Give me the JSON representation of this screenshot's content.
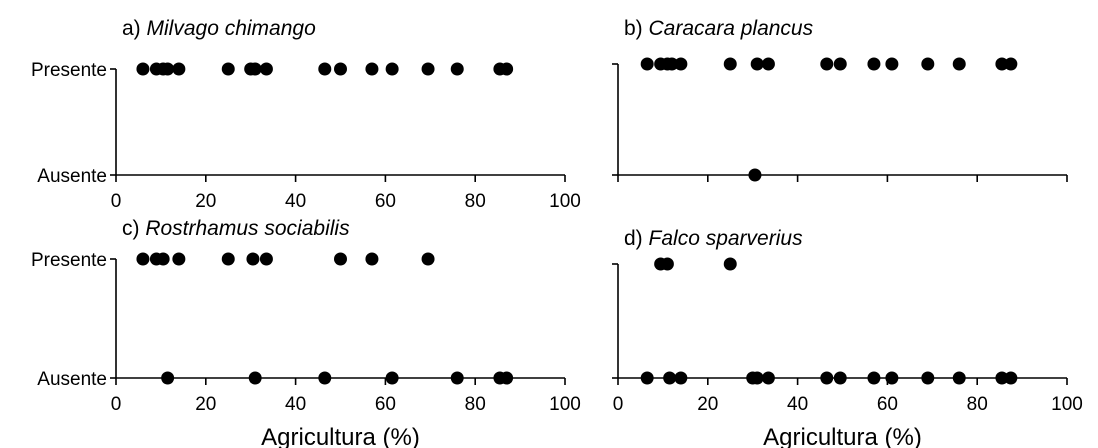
{
  "chart_data": [
    {
      "type": "scatter",
      "title_prefix": "a)",
      "title_species": "Milvago chimango",
      "xlim": [
        0,
        100
      ],
      "xticks": [
        0,
        20,
        40,
        60,
        80,
        100
      ],
      "xtick_labels": [
        "0",
        "20",
        "40",
        "60",
        "80",
        "100"
      ],
      "categories": [
        "Ausente",
        "Presente"
      ],
      "points": [
        {
          "x": 6,
          "y": "Presente"
        },
        {
          "x": 9,
          "y": "Presente"
        },
        {
          "x": 10.5,
          "y": "Presente"
        },
        {
          "x": 11.5,
          "y": "Presente"
        },
        {
          "x": 14,
          "y": "Presente"
        },
        {
          "x": 25,
          "y": "Presente"
        },
        {
          "x": 30,
          "y": "Presente"
        },
        {
          "x": 31,
          "y": "Presente"
        },
        {
          "x": 33.5,
          "y": "Presente"
        },
        {
          "x": 46.5,
          "y": "Presente"
        },
        {
          "x": 50,
          "y": "Presente"
        },
        {
          "x": 57,
          "y": "Presente"
        },
        {
          "x": 61.5,
          "y": "Presente"
        },
        {
          "x": 69.5,
          "y": "Presente"
        },
        {
          "x": 76,
          "y": "Presente"
        },
        {
          "x": 85.5,
          "y": "Presente"
        },
        {
          "x": 87,
          "y": "Presente"
        }
      ]
    },
    {
      "type": "scatter",
      "title_prefix": "b)",
      "title_species": "Caracara plancus",
      "xlim": [
        0,
        100
      ],
      "xticks": [
        0,
        20,
        40,
        60,
        80,
        100
      ],
      "xtick_labels": [
        "",
        "",
        "",
        "",
        "",
        ""
      ],
      "categories": [
        "Ausente",
        "Presente"
      ],
      "points": [
        {
          "x": 6.5,
          "y": "Presente"
        },
        {
          "x": 9.5,
          "y": "Presente"
        },
        {
          "x": 11,
          "y": "Presente"
        },
        {
          "x": 12,
          "y": "Presente"
        },
        {
          "x": 14,
          "y": "Presente"
        },
        {
          "x": 25,
          "y": "Presente"
        },
        {
          "x": 31,
          "y": "Presente"
        },
        {
          "x": 33.5,
          "y": "Presente"
        },
        {
          "x": 46.5,
          "y": "Presente"
        },
        {
          "x": 49.5,
          "y": "Presente"
        },
        {
          "x": 57,
          "y": "Presente"
        },
        {
          "x": 61,
          "y": "Presente"
        },
        {
          "x": 69,
          "y": "Presente"
        },
        {
          "x": 76,
          "y": "Presente"
        },
        {
          "x": 85.5,
          "y": "Presente"
        },
        {
          "x": 87.5,
          "y": "Presente"
        },
        {
          "x": 30.5,
          "y": "Ausente"
        }
      ]
    },
    {
      "type": "scatter",
      "title_prefix": "c)",
      "title_species": "Rostrhamus sociabilis",
      "xlim": [
        0,
        100
      ],
      "xticks": [
        0,
        20,
        40,
        60,
        80,
        100
      ],
      "xtick_labels": [
        "0",
        "20",
        "40",
        "60",
        "80",
        "100"
      ],
      "xlabel": "Agricultura (%)",
      "categories": [
        "Ausente",
        "Presente"
      ],
      "points": [
        {
          "x": 6,
          "y": "Presente"
        },
        {
          "x": 9,
          "y": "Presente"
        },
        {
          "x": 10.5,
          "y": "Presente"
        },
        {
          "x": 14,
          "y": "Presente"
        },
        {
          "x": 25,
          "y": "Presente"
        },
        {
          "x": 30.5,
          "y": "Presente"
        },
        {
          "x": 33.5,
          "y": "Presente"
        },
        {
          "x": 50,
          "y": "Presente"
        },
        {
          "x": 57,
          "y": "Presente"
        },
        {
          "x": 69.5,
          "y": "Presente"
        },
        {
          "x": 11.5,
          "y": "Ausente"
        },
        {
          "x": 31,
          "y": "Ausente"
        },
        {
          "x": 46.5,
          "y": "Ausente"
        },
        {
          "x": 61.5,
          "y": "Ausente"
        },
        {
          "x": 76,
          "y": "Ausente"
        },
        {
          "x": 85.5,
          "y": "Ausente"
        },
        {
          "x": 87,
          "y": "Ausente"
        }
      ]
    },
    {
      "type": "scatter",
      "title_prefix": "d)",
      "title_species": "Falco sparverius",
      "xlim": [
        0,
        100
      ],
      "xticks": [
        0,
        20,
        40,
        60,
        80,
        100
      ],
      "xtick_labels": [
        "0",
        "20",
        "40",
        "60",
        "80",
        "100"
      ],
      "xlabel": "Agricultura (%)",
      "categories": [
        "Ausente",
        "Presente"
      ],
      "points": [
        {
          "x": 9.5,
          "y": "Presente"
        },
        {
          "x": 11,
          "y": "Presente"
        },
        {
          "x": 25,
          "y": "Presente"
        },
        {
          "x": 6.5,
          "y": "Ausente"
        },
        {
          "x": 11.5,
          "y": "Ausente"
        },
        {
          "x": 14,
          "y": "Ausente"
        },
        {
          "x": 30,
          "y": "Ausente"
        },
        {
          "x": 31,
          "y": "Ausente"
        },
        {
          "x": 33.5,
          "y": "Ausente"
        },
        {
          "x": 46.5,
          "y": "Ausente"
        },
        {
          "x": 49.5,
          "y": "Ausente"
        },
        {
          "x": 57,
          "y": "Ausente"
        },
        {
          "x": 61,
          "y": "Ausente"
        },
        {
          "x": 69,
          "y": "Ausente"
        },
        {
          "x": 76,
          "y": "Ausente"
        },
        {
          "x": 85.5,
          "y": "Ausente"
        },
        {
          "x": 87.5,
          "y": "Ausente"
        }
      ]
    }
  ]
}
